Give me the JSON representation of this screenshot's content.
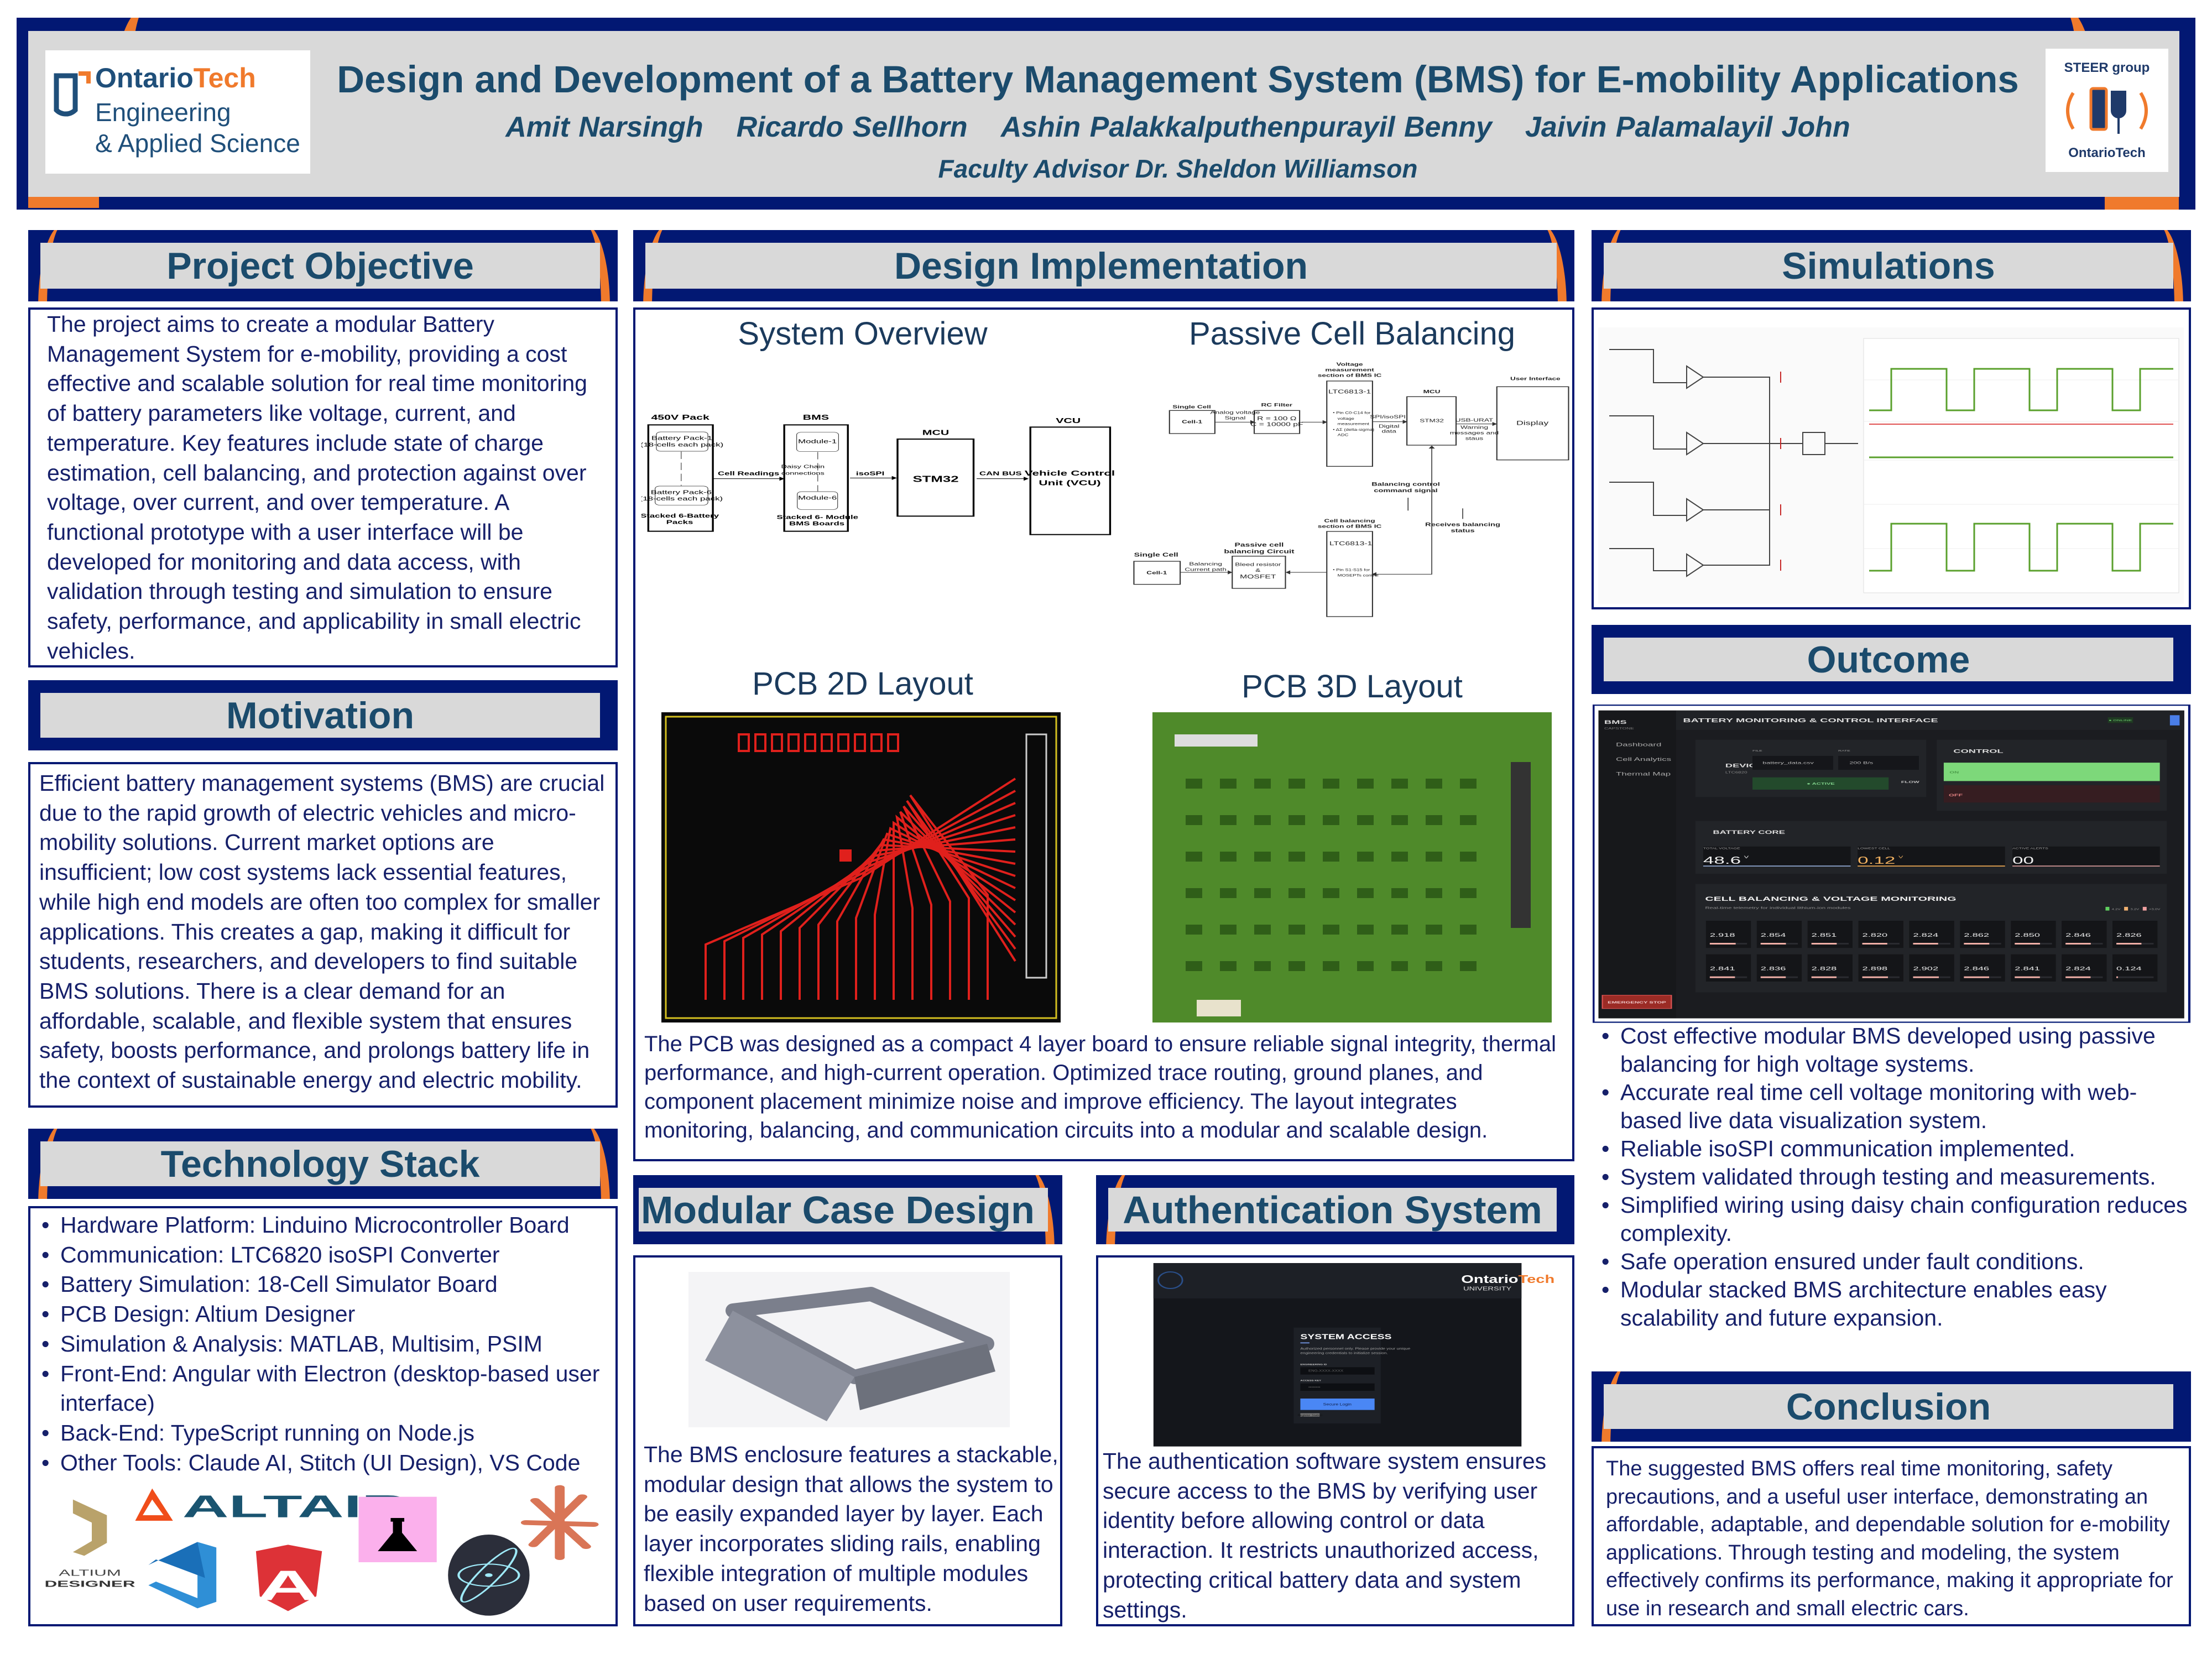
{
  "header": {
    "title": "Design and Development of a Battery Management System (BMS) for E-mobility Applications",
    "authors": [
      "Amit Narsingh",
      "Ricardo Sellhorn",
      "Ashin Palakkalputhenpurayil Benny",
      "Jaivin Palamalayil John"
    ],
    "advisor": "Faculty Advisor Dr. Sheldon Williamson",
    "logo_left": {
      "brand_a": "Ontario",
      "brand_b": "Tech",
      "line1": "Engineering",
      "line2": "& Applied Science"
    },
    "logo_right": {
      "top": "STEER group",
      "bottom": "OntarioTech"
    }
  },
  "colors": {
    "navy": "#021873",
    "orange": "#f07a2c",
    "title_blue": "#1b4b6c",
    "header_gray": "#d9d9d9"
  },
  "project_objective": {
    "title": "Project Objective",
    "text": "The project aims to create a modular Battery Management System for e-mobility, providing a cost effective and scalable solution for real time monitoring of battery parameters like voltage, current, and temperature. Key features include state of charge estimation, cell balancing, and protection against over voltage, over current, and over temperature. A functional prototype with a user interface will be developed for monitoring and data access, with validation through testing and simulation to ensure safety, performance, and applicability in small electric vehicles."
  },
  "motivation": {
    "title": "Motivation",
    "text": "Efficient battery management systems (BMS) are crucial due to the rapid growth of electric vehicles and micro-mobility solutions. Current market options are insufficient; low cost systems lack essential features, while high end models are often too complex for smaller applications. This creates a gap, making it difficult for students, researchers, and developers to find suitable BMS solutions. There is a clear demand for an affordable, scalable, and flexible system that ensures safety, boosts performance, and prolongs battery life in the context of sustainable energy and electric mobility."
  },
  "tech_stack": {
    "title": "Technology Stack",
    "items": [
      "Hardware Platform: Linduino Microcontroller Board",
      "Communication: LTC6820 isoSPI Converter",
      "Battery Simulation: 18-Cell Simulator Board",
      "PCB Design: Altium Designer",
      "Simulation & Analysis: MATLAB, Multisim, PSIM",
      "Front-End: Angular with Electron (desktop-based user interface)",
      "Back-End: TypeScript running on Node.js",
      "Other Tools: Claude AI, Stitch (UI Design), VS Code"
    ],
    "logos": {
      "altair": "ALTAIR",
      "altium_1": "ALTIUM",
      "altium_2": "DESIGNER",
      "angular": "A"
    }
  },
  "design_implementation": {
    "title": "Design Implementation",
    "system_overview": {
      "title": "System Overview",
      "pack_title": "450V Pack",
      "pack1_a": "Battery Pack-1",
      "pack1_b": "(18-cells each pack)",
      "pack6_a": "Battery Pack-6",
      "pack6_b": "(18-cells each pack)",
      "pack_caption_a": "Stacked 6-Battery",
      "pack_caption_b": "Packs",
      "bms_title": "BMS",
      "module1": "Module-1",
      "module6": "Module-6",
      "daisy_a": "Daisy Chain",
      "daisy_b": "connections",
      "bms_caption_a": "Stacked 6- Module",
      "bms_caption_b": "BMS Boards",
      "link1": "Cell Readings",
      "link2": "isoSPI",
      "link3": "CAN BUS",
      "mcu_title": "MCU",
      "mcu": "STM32",
      "vcu_title": "VCU",
      "vcu_a": "Vehicle Control",
      "vcu_b": "Unit (VCU)"
    },
    "passive_balancing": {
      "title": "Passive Cell Balancing",
      "single_cell": "Single Cell",
      "cell": "Cell-1",
      "analog_a": "Analog voltage",
      "analog_b": "Signal",
      "rc_title": "RC Filter",
      "rc_r": "R = 100 Ω",
      "rc_c": "C = 10000 pF",
      "vm_a": "Voltage",
      "vm_b": "measurement",
      "vm_c": "section of BMS IC",
      "ltc": "LTC6813-1",
      "vm_p1a": "• Pin C0-C14 for",
      "vm_p1b": "voltage",
      "vm_p1c": "measurement",
      "vm_p2a": "• ΔΣ (delta-sigma)",
      "vm_p2b": "ADC",
      "spi": "SPI/isoSPI",
      "digital_a": "Digital",
      "digital_b": "data",
      "mcu_title": "MCU",
      "mcu": "STM32",
      "usb": "USB-URAT",
      "warn_a": "Warning",
      "warn_b": "messages and",
      "warn_c": "staus",
      "ui_title": "User Interface",
      "display": "Display",
      "bal_cmd_a": "Balancing control",
      "bal_cmd_b": "command signal",
      "recv_a": "Receives balancing",
      "recv_b": "status",
      "cb_a": "Cell balancing",
      "cb_b": "section of BMS IC",
      "cb_p1": "• Pin S1-S15 for",
      "cb_p2": "MOSEPTs control",
      "pc_a": "Passive cell",
      "pc_b": "balancing Circuit",
      "bleed_a": "Bleed resistor",
      "bleed_b": "&",
      "bleed_c": "MOSFET",
      "path_a": "Balancing",
      "path_b": "Current path"
    },
    "pcb_2d_title": "PCB 2D Layout",
    "pcb_3d_title": "PCB 3D Layout",
    "text": "The PCB was designed as a compact 4 layer board to ensure reliable signal integrity, thermal performance, and high-current operation. Optimized trace routing, ground planes, and component placement minimize noise and improve efficiency. The layout integrates monitoring, balancing, and communication circuits into a modular and scalable design."
  },
  "modular_case": {
    "title": "Modular Case Design",
    "text": "The BMS enclosure features a stackable, modular design that allows the system to be easily expanded layer by layer. Each layer incorporates sliding rails, enabling flexible integration of multiple modules based on user requirements."
  },
  "authentication": {
    "title": "Authentication System",
    "screen": {
      "brand_a": "Ontario",
      "brand_b": "Tech",
      "brand_sub": "UNIVERSITY",
      "heading": "SYSTEM ACCESS",
      "desc_a": "Authorized personnel only. Please provide your unique",
      "desc_b": "engineering credentials to initialize session.",
      "id_label": "ENGINEERING ID",
      "id_placeholder": "ENG-XXXX-XXXX",
      "key_label": "ACCESS KEY",
      "key_placeholder": "••••••••",
      "login": "Secure Login",
      "register": "Register Station"
    },
    "text": "The authentication software system ensures secure access to the BMS by verifying user identity before allowing control or data interaction. It restricts unauthorized access, protecting critical battery data and system settings."
  },
  "simulations": {
    "title": "Simulations"
  },
  "outcome": {
    "title": "Outcome",
    "dashboard": {
      "brand": "BMS",
      "brand_sub": "CAPSTONE",
      "title": "BATTERY MONITORING & CONTROL INTERFACE",
      "status": "● ONLINE",
      "nav": [
        "Dashboard",
        "Cell Analytics",
        "Thermal Map"
      ],
      "device": "DEVICE",
      "device_sub": "LTC6820",
      "file_label": "FILE",
      "file": "battery_data.csv",
      "rate_label": "RATE",
      "rate": "200 B/s",
      "active": "● ACTIVE",
      "flow": "FLOW",
      "control": "CONTROL",
      "on": "ON",
      "off": "OFF",
      "core": "BATTERY CORE",
      "stats": [
        {
          "label": "TOTAL VOLTAGE",
          "value": "48.6",
          "unit": "V"
        },
        {
          "label": "LOWEST CELL",
          "value": "0.12",
          "unit": "V"
        },
        {
          "label": "ACTIVE ALERTS",
          "value": "00",
          "unit": ""
        }
      ],
      "cells_title": "CELL BALANCING & VOLTAGE MONITORING",
      "cells_sub": "Real-time telemetry for individual lithium-ion modules",
      "legend": [
        "4.2V",
        "3.2V",
        "<3.0V"
      ],
      "cells": [
        2.918,
        2.854,
        2.851,
        2.82,
        2.824,
        2.862,
        2.85,
        2.846,
        2.826,
        2.841,
        2.836,
        2.828,
        2.898,
        2.902,
        2.846,
        2.841,
        2.824,
        0.124
      ],
      "cell_max": 4.2,
      "emergency": "EMERGENCY STOP"
    },
    "items": [
      "Cost effective modular BMS developed using passive balancing for high voltage systems.",
      "Accurate real time cell voltage monitoring with web-based live data visualization system.",
      "Reliable isoSPI communication implemented.",
      "System validated through testing and measurements.",
      "Simplified wiring using daisy chain configuration reduces complexity.",
      "Safe operation ensured under fault conditions.",
      "Modular stacked BMS architecture enables easy scalability and future expansion."
    ]
  },
  "conclusion": {
    "title": "Conclusion",
    "text": "The suggested BMS offers real time monitoring, safety precautions, and a useful user interface, demonstrating an affordable, adaptable, and dependable solution for e-mobility applications. Through testing and modeling, the system effectively confirms its performance, making it appropriate for use in research and small electric cars."
  }
}
